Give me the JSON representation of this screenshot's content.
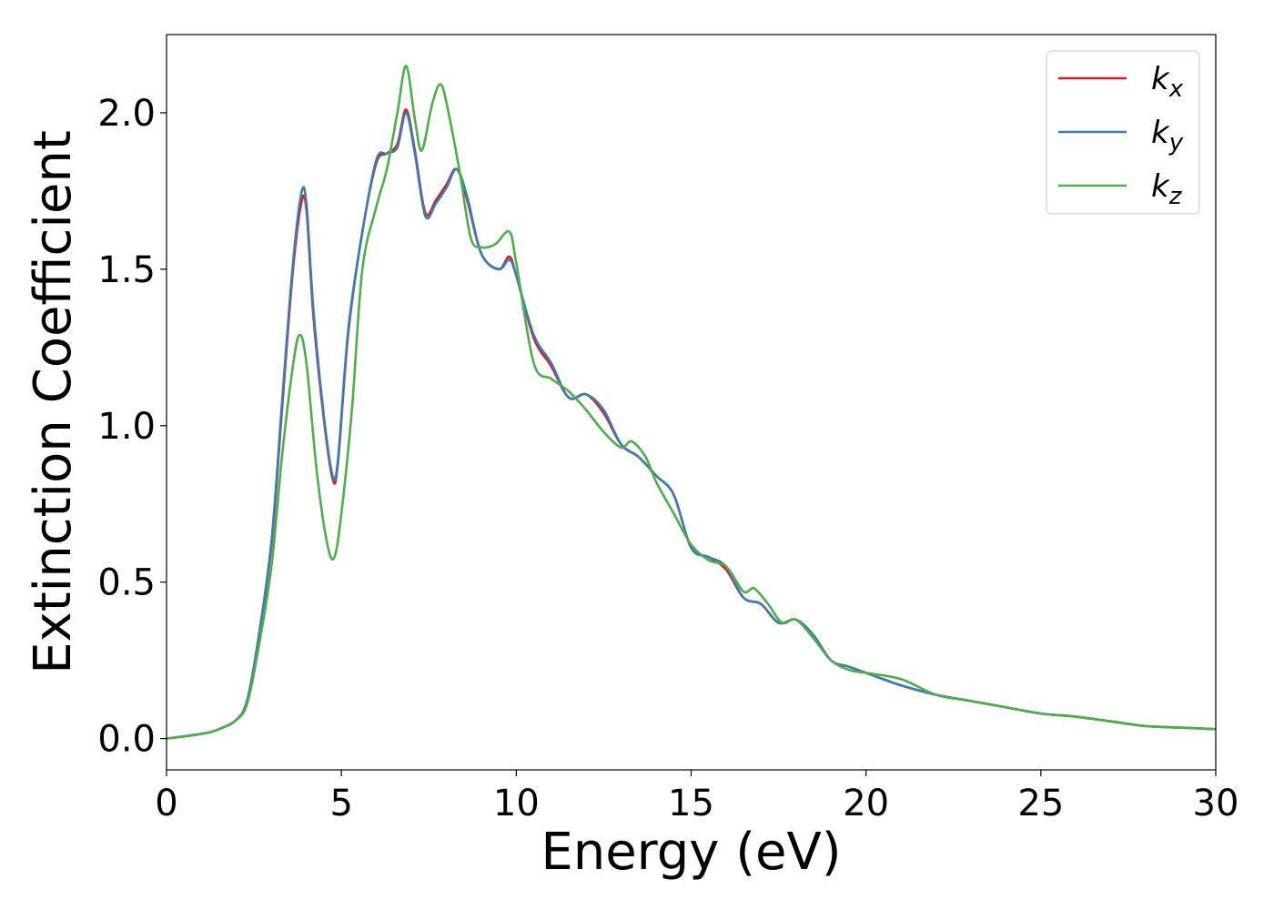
{
  "chart_data": {
    "type": "line",
    "xlabel": "Energy (eV)",
    "ylabel": "Extinction Coefficient",
    "xlim": [
      0,
      30
    ],
    "ylim": [
      -0.1,
      2.25
    ],
    "xticks": [
      "0",
      "5",
      "10",
      "15",
      "20",
      "25",
      "30"
    ],
    "yticks": [
      "0.0",
      "0.5",
      "1.0",
      "1.5",
      "2.0"
    ],
    "grid": false,
    "legend_position": "top-right",
    "series": [
      {
        "name": "kx",
        "legend_main": "k",
        "legend_sub": "x",
        "color": "#e41a1c",
        "x": [
          0,
          1,
          1.5,
          2,
          2.3,
          2.6,
          3,
          3.3,
          3.6,
          3.85,
          4.0,
          4.2,
          4.5,
          4.75,
          4.9,
          5.2,
          5.6,
          6.0,
          6.3,
          6.6,
          6.85,
          7.1,
          7.4,
          7.7,
          8.0,
          8.3,
          8.6,
          9.0,
          9.5,
          9.8,
          10.0,
          10.5,
          11.0,
          11.5,
          12.0,
          12.5,
          13.0,
          13.5,
          14.0,
          14.5,
          15.0,
          15.5,
          16.0,
          16.5,
          17.0,
          17.5,
          18.0,
          18.5,
          19.0,
          19.5,
          20.0,
          21.0,
          22.0,
          23.0,
          24.0,
          25.0,
          26.0,
          27.0,
          28.0,
          29.0,
          30.0
        ],
        "y": [
          0,
          0.015,
          0.03,
          0.06,
          0.12,
          0.3,
          0.62,
          1.05,
          1.48,
          1.71,
          1.69,
          1.35,
          1.02,
          0.83,
          0.88,
          1.3,
          1.62,
          1.84,
          1.87,
          1.9,
          2.01,
          1.88,
          1.68,
          1.72,
          1.77,
          1.82,
          1.72,
          1.55,
          1.5,
          1.54,
          1.48,
          1.28,
          1.19,
          1.09,
          1.1,
          1.04,
          0.94,
          0.9,
          0.84,
          0.78,
          0.61,
          0.58,
          0.54,
          0.45,
          0.43,
          0.37,
          0.38,
          0.33,
          0.25,
          0.23,
          0.21,
          0.17,
          0.14,
          0.12,
          0.1,
          0.08,
          0.07,
          0.055,
          0.04,
          0.035,
          0.03
        ]
      },
      {
        "name": "ky",
        "legend_main": "k",
        "legend_sub": "y",
        "color": "#377eb8",
        "x": [
          0,
          1,
          1.5,
          2,
          2.3,
          2.6,
          3,
          3.3,
          3.6,
          3.85,
          4.0,
          4.2,
          4.5,
          4.75,
          4.9,
          5.2,
          5.6,
          6.0,
          6.3,
          6.6,
          6.85,
          7.1,
          7.4,
          7.7,
          8.0,
          8.3,
          8.6,
          9.0,
          9.5,
          9.8,
          10.0,
          10.5,
          11.0,
          11.5,
          12.0,
          12.5,
          13.0,
          13.5,
          14.0,
          14.5,
          15.0,
          15.5,
          16.0,
          16.5,
          17.0,
          17.5,
          18.0,
          18.5,
          19.0,
          19.5,
          20.0,
          21.0,
          22.0,
          23.0,
          24.0,
          25.0,
          26.0,
          27.0,
          28.0,
          29.0,
          30.0
        ],
        "y": [
          0,
          0.015,
          0.03,
          0.06,
          0.12,
          0.3,
          0.63,
          1.07,
          1.5,
          1.74,
          1.71,
          1.37,
          1.03,
          0.84,
          0.89,
          1.31,
          1.62,
          1.85,
          1.87,
          1.89,
          2.0,
          1.87,
          1.67,
          1.71,
          1.76,
          1.82,
          1.73,
          1.55,
          1.5,
          1.53,
          1.48,
          1.29,
          1.2,
          1.09,
          1.1,
          1.05,
          0.94,
          0.9,
          0.84,
          0.78,
          0.61,
          0.58,
          0.55,
          0.45,
          0.43,
          0.37,
          0.38,
          0.33,
          0.25,
          0.23,
          0.21,
          0.17,
          0.14,
          0.12,
          0.1,
          0.08,
          0.07,
          0.055,
          0.04,
          0.035,
          0.03
        ]
      },
      {
        "name": "kz",
        "legend_main": "k",
        "legend_sub": "z",
        "color": "#4daf4a",
        "x": [
          0,
          1,
          1.5,
          2,
          2.3,
          2.6,
          3,
          3.3,
          3.6,
          3.8,
          4.0,
          4.3,
          4.6,
          4.8,
          5.0,
          5.3,
          5.6,
          6.0,
          6.3,
          6.6,
          6.85,
          7.1,
          7.3,
          7.6,
          7.85,
          8.1,
          8.4,
          8.7,
          9.0,
          9.4,
          9.8,
          10.0,
          10.5,
          11.0,
          11.5,
          12.0,
          12.5,
          13.0,
          13.3,
          13.7,
          14.0,
          14.5,
          15.0,
          15.5,
          16.0,
          16.5,
          16.8,
          17.2,
          17.6,
          18.0,
          18.5,
          19.0,
          19.5,
          20.0,
          21.0,
          22.0,
          23.0,
          24.0,
          25.0,
          26.0,
          27.0,
          28.0,
          29.0,
          30.0
        ],
        "y": [
          0,
          0.015,
          0.03,
          0.06,
          0.11,
          0.27,
          0.55,
          0.9,
          1.18,
          1.29,
          1.2,
          0.85,
          0.62,
          0.58,
          0.72,
          1.05,
          1.5,
          1.7,
          1.82,
          2.0,
          2.15,
          1.98,
          1.88,
          2.03,
          2.09,
          1.98,
          1.8,
          1.6,
          1.57,
          1.58,
          1.62,
          1.52,
          1.2,
          1.15,
          1.11,
          1.05,
          0.98,
          0.93,
          0.95,
          0.9,
          0.82,
          0.72,
          0.62,
          0.57,
          0.55,
          0.47,
          0.48,
          0.43,
          0.37,
          0.38,
          0.32,
          0.25,
          0.22,
          0.21,
          0.19,
          0.14,
          0.12,
          0.1,
          0.08,
          0.07,
          0.055,
          0.04,
          0.035,
          0.03
        ]
      }
    ]
  }
}
